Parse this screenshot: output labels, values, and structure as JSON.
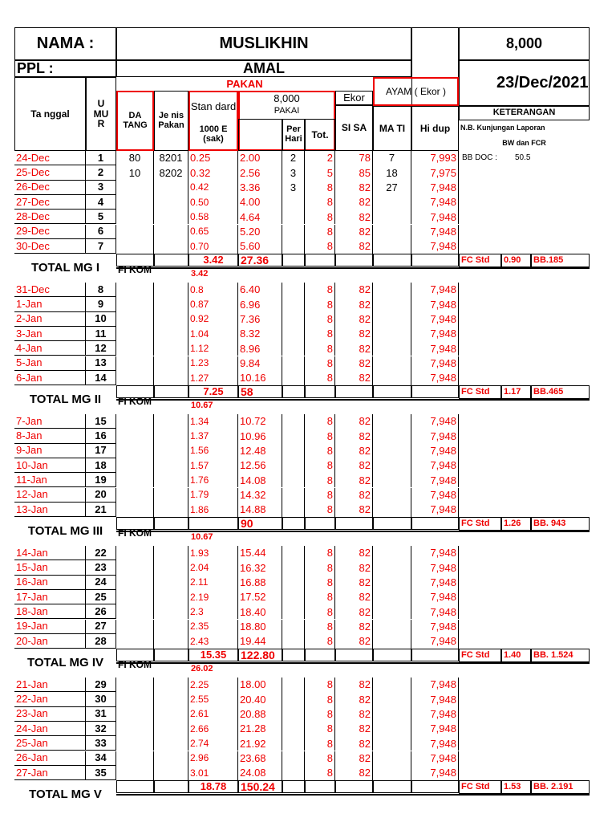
{
  "header": {
    "nama_label": "NAMA :",
    "nama": "MUSLIKHIN",
    "total": "8,000",
    "ppl_label": "PPL :",
    "ppl": "AMAL",
    "date": "23/Dec/2021"
  },
  "columns": {
    "pakan": "PAKAN",
    "tanggal": "Ta nggal",
    "umur": "U MU R",
    "datang": "DA TANG",
    "jenis": "Je nis Pakan",
    "standard": "Stan dard",
    "unit": "1000 E (sak)",
    "pakai_count": "8,000",
    "pakai": "PAKAI",
    "per_hari": "Per Hari",
    "tot": "Tot.",
    "ekor": "Ekor",
    "sisa": "SI SA",
    "ayam": "AYAM ( Ekor )",
    "mati": "MA TI",
    "hidup": "Hi dup",
    "keterangan": "KETERANGAN",
    "nb": "N.B. Kunjungan Laporan",
    "bw": "BW dan FCR"
  },
  "weeks": [
    {
      "rows": [
        [
          "24-Dec",
          "1",
          "80",
          "8201",
          "0.25",
          "2.00",
          "2",
          "2",
          "78",
          "7",
          "7,993"
        ],
        [
          "25-Dec",
          "2",
          "10",
          "8202",
          "0.32",
          "2.56",
          "3",
          "5",
          "85",
          "18",
          "7,975"
        ],
        [
          "26-Dec",
          "3",
          null,
          null,
          "0.42",
          "3.36",
          "3",
          "8",
          "82",
          "27",
          "7,948"
        ],
        [
          "27-Dec",
          "4",
          null,
          null,
          "0.50",
          "4.00",
          null,
          "8",
          "82",
          null,
          "7,948"
        ],
        [
          "28-Dec",
          "5",
          null,
          null,
          "0.58",
          "4.64",
          null,
          "8",
          "82",
          null,
          "7,948"
        ],
        [
          "29-Dec",
          "6",
          null,
          null,
          "0.65",
          "5.20",
          null,
          "8",
          "82",
          null,
          "7,948"
        ],
        [
          "30-Dec",
          "7",
          null,
          null,
          "0.70",
          "5.60",
          null,
          "8",
          "82",
          null,
          "7,948"
        ]
      ],
      "note": [
        "BB DOC :",
        "50.5"
      ],
      "total": {
        "label": "TOTAL MG I",
        "standard": "3.42",
        "pakai": "27.36",
        "fi_kom_label": "FI KOM",
        "fi_kom": "3.42",
        "fc_label": "FC Std",
        "fc": "0.90",
        "bb": "BB.185"
      }
    },
    {
      "rows": [
        [
          "31-Dec",
          "8",
          null,
          null,
          "0.8",
          "6.40",
          null,
          "8",
          "82",
          null,
          "7,948"
        ],
        [
          "1-Jan",
          "9",
          null,
          null,
          "0.87",
          "6.96",
          null,
          "8",
          "82",
          null,
          "7,948"
        ],
        [
          "2-Jan",
          "10",
          null,
          null,
          "0.92",
          "7.36",
          null,
          "8",
          "82",
          null,
          "7,948"
        ],
        [
          "3-Jan",
          "11",
          null,
          null,
          "1.04",
          "8.32",
          null,
          "8",
          "82",
          null,
          "7,948"
        ],
        [
          "4-Jan",
          "12",
          null,
          null,
          "1.12",
          "8.96",
          null,
          "8",
          "82",
          null,
          "7,948"
        ],
        [
          "5-Jan",
          "13",
          null,
          null,
          "1.23",
          "9.84",
          null,
          "8",
          "82",
          null,
          "7,948"
        ],
        [
          "6-Jan",
          "14",
          null,
          null,
          "1.27",
          "10.16",
          null,
          "8",
          "82",
          null,
          "7,948"
        ]
      ],
      "total": {
        "label": "TOTAL MG II",
        "standard": "7.25",
        "pakai": "58",
        "fi_kom_label": "FI KOM",
        "fi_kom": "10.67",
        "fc_label": "FC Std",
        "fc": "1.17",
        "bb": "BB.465"
      }
    },
    {
      "rows": [
        [
          "7-Jan",
          "15",
          null,
          null,
          "1.34",
          "10.72",
          null,
          "8",
          "82",
          null,
          "7,948"
        ],
        [
          "8-Jan",
          "16",
          null,
          null,
          "1.37",
          "10.96",
          null,
          "8",
          "82",
          null,
          "7,948"
        ],
        [
          "9-Jan",
          "17",
          null,
          null,
          "1.56",
          "12.48",
          null,
          "8",
          "82",
          null,
          "7,948"
        ],
        [
          "10-Jan",
          "18",
          null,
          null,
          "1.57",
          "12.56",
          null,
          "8",
          "82",
          null,
          "7,948"
        ],
        [
          "11-Jan",
          "19",
          null,
          null,
          "1.76",
          "14.08",
          null,
          "8",
          "82",
          null,
          "7,948"
        ],
        [
          "12-Jan",
          "20",
          null,
          null,
          "1.79",
          "14.32",
          null,
          "8",
          "82",
          null,
          "7,948"
        ],
        [
          "13-Jan",
          "21",
          null,
          null,
          "1.86",
          "14.88",
          null,
          "8",
          "82",
          null,
          "7,948"
        ]
      ],
      "total": {
        "label": "TOTAL MG III",
        "standard": null,
        "pakai": "90",
        "fi_kom_label": "FI KOM",
        "fi_kom": "10.67",
        "fc_label": "FC Std",
        "fc": "1.26",
        "bb": "BB. 943"
      }
    },
    {
      "rows": [
        [
          "14-Jan",
          "22",
          null,
          null,
          "1.93",
          "15.44",
          null,
          "8",
          "82",
          null,
          "7,948"
        ],
        [
          "15-Jan",
          "23",
          null,
          null,
          "2.04",
          "16.32",
          null,
          "8",
          "82",
          null,
          "7,948"
        ],
        [
          "16-Jan",
          "24",
          null,
          null,
          "2.11",
          "16.88",
          null,
          "8",
          "82",
          null,
          "7,948"
        ],
        [
          "17-Jan",
          "25",
          null,
          null,
          "2.19",
          "17.52",
          null,
          "8",
          "82",
          null,
          "7,948"
        ],
        [
          "18-Jan",
          "26",
          null,
          null,
          "2.3",
          "18.40",
          null,
          "8",
          "82",
          null,
          "7,948"
        ],
        [
          "19-Jan",
          "27",
          null,
          null,
          "2.35",
          "18.80",
          null,
          "8",
          "82",
          null,
          "7,948"
        ],
        [
          "20-Jan",
          "28",
          null,
          null,
          "2.43",
          "19.44",
          null,
          "8",
          "82",
          null,
          "7,948"
        ]
      ],
      "total": {
        "label": "TOTAL MG IV",
        "standard": "15.35",
        "pakai": "122.80",
        "fi_kom_label": "FI KOM",
        "fi_kom": "26.02",
        "fc_label": "FC Std",
        "fc": "1.40",
        "bb": "BB. 1.524"
      }
    },
    {
      "rows": [
        [
          "21-Jan",
          "29",
          null,
          null,
          "2.25",
          "18.00",
          null,
          "8",
          "82",
          null,
          "7,948"
        ],
        [
          "22-Jan",
          "30",
          null,
          null,
          "2.55",
          "20.40",
          null,
          "8",
          "82",
          null,
          "7,948"
        ],
        [
          "23-Jan",
          "31",
          null,
          null,
          "2.61",
          "20.88",
          null,
          "8",
          "82",
          null,
          "7,948"
        ],
        [
          "24-Jan",
          "32",
          null,
          null,
          "2.66",
          "21.28",
          null,
          "8",
          "82",
          null,
          "7,948"
        ],
        [
          "25-Jan",
          "33",
          null,
          null,
          "2.74",
          "21.92",
          null,
          "8",
          "82",
          null,
          "7,948"
        ],
        [
          "26-Jan",
          "34",
          null,
          null,
          "2.96",
          "23.68",
          null,
          "8",
          "82",
          null,
          "7,948"
        ],
        [
          "27-Jan",
          "35",
          null,
          null,
          "3.01",
          "24.08",
          null,
          "8",
          "82",
          null,
          "7,948"
        ]
      ],
      "total": {
        "label": "TOTAL MG V",
        "standard": "18.78",
        "pakai": "150.24",
        "fi_kom_label": null,
        "fi_kom": null,
        "fc_label": "FC Std",
        "fc": "1.53",
        "bb": "BB. 2.191"
      }
    }
  ]
}
